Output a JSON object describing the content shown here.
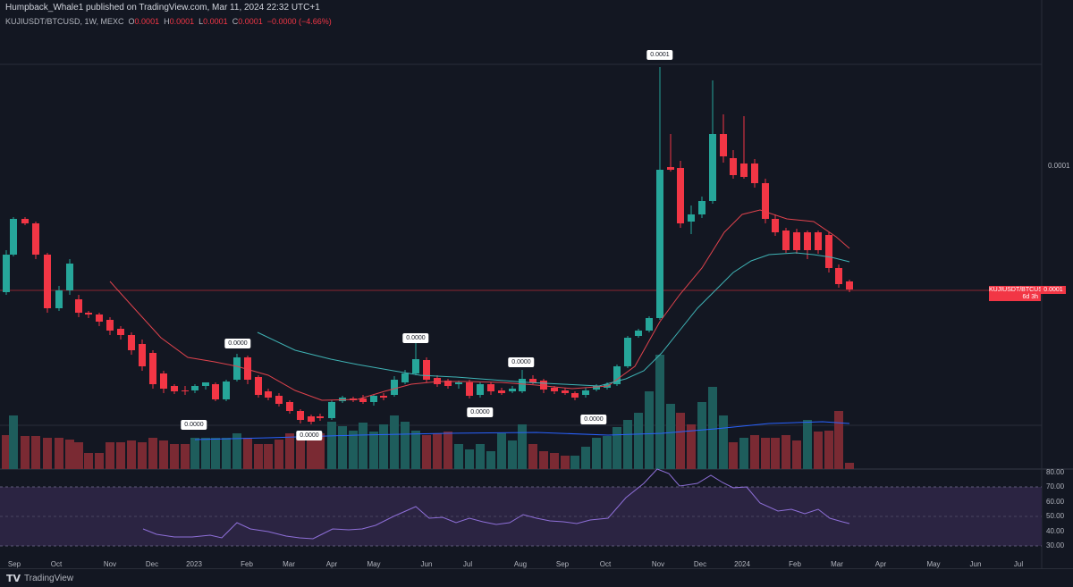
{
  "header": {
    "published": "Humpback_Whale1 published on TradingView.com, Mar 11, 2024 22:32 UTC+1"
  },
  "legend": {
    "symbol": "KUJIUSDT/BTCUSD, 1W, MEXC",
    "o_label": "O",
    "o_value": "0.0001",
    "h_label": "H",
    "h_value": "0.0001",
    "l_label": "L",
    "l_value": "0.0001",
    "c_label": "C",
    "c_value": "0.0001",
    "change": "−0.0000 (−4.66%)"
  },
  "price_tag": {
    "symbol": "KUJIUSDT/BTCUSD",
    "value": "0.0001",
    "countdown": "6d 3h"
  },
  "price_axis": {
    "label": "0.0001"
  },
  "rsi_axis": [
    "80.00",
    "70.00",
    "60.00",
    "50.00",
    "40.00",
    "30.00"
  ],
  "time_axis": [
    "Sep",
    "Oct",
    "Nov",
    "Dec",
    "2023",
    "Feb",
    "Mar",
    "Apr",
    "May",
    "Jun",
    "Jul",
    "Aug",
    "Sep",
    "Oct",
    "Nov",
    "Dec",
    "2024",
    "Feb",
    "Mar",
    "Apr",
    "May",
    "Jun",
    "Jul"
  ],
  "callouts": [
    "0.0001",
    "0.0000",
    "0.0000",
    "0.0000",
    "0.0000",
    "0.0000",
    "0.0000",
    "0.0000"
  ],
  "footer": {
    "brand_logo": "TV",
    "brand_name": "TradingView"
  },
  "colors": {
    "up": "#26a69a",
    "down": "#f23645",
    "up_volume": "#1e5d5c",
    "down_volume": "#7a2a33",
    "ma_short": "#e0434d",
    "ma_long": "#3fb3b5",
    "volume_ma": "#2962ff",
    "rsi": "#8e6fd8"
  }
}
